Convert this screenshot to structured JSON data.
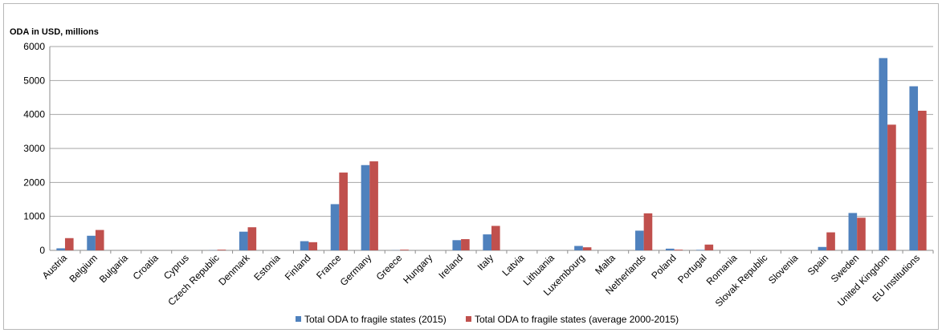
{
  "chart_data": {
    "type": "bar",
    "title": "ODA in USD, millions",
    "ylim": [
      0,
      6000
    ],
    "yticks": [
      0,
      1000,
      2000,
      3000,
      4000,
      5000,
      6000
    ],
    "grid": true,
    "legend_position": "bottom",
    "categories": [
      "Austria",
      "Belgium",
      "Bulgaria",
      "Croatia",
      "Cyprus",
      "Czech Republic",
      "Denmark",
      "Estonia",
      "Finland",
      "France",
      "Germany",
      "Greece",
      "Hungary",
      "Ireland",
      "Italy",
      "Latvia",
      "Lithuania",
      "Luxembourg",
      "Malta",
      "Netherlands",
      "Poland",
      "Portugal",
      "Romania",
      "Slovak Republic",
      "Slovenia",
      "Spain",
      "Sweden",
      "United Kingdom",
      "EU Institutions"
    ],
    "series": [
      {
        "name": "Total ODA to fragile states (2015)",
        "color": "#4f81bd",
        "values": [
          60,
          430,
          0,
          0,
          0,
          5,
          550,
          0,
          270,
          1360,
          2510,
          5,
          0,
          300,
          470,
          0,
          0,
          130,
          0,
          580,
          50,
          15,
          0,
          0,
          0,
          100,
          1100,
          5660,
          4830
        ]
      },
      {
        "name": "Total ODA to fragile states (average 2000-2015)",
        "color": "#c0504d",
        "values": [
          360,
          600,
          0,
          0,
          0,
          20,
          680,
          0,
          240,
          2290,
          2620,
          20,
          0,
          330,
          720,
          0,
          0,
          90,
          0,
          1090,
          20,
          170,
          0,
          0,
          0,
          530,
          960,
          3700,
          4110
        ]
      }
    ]
  }
}
